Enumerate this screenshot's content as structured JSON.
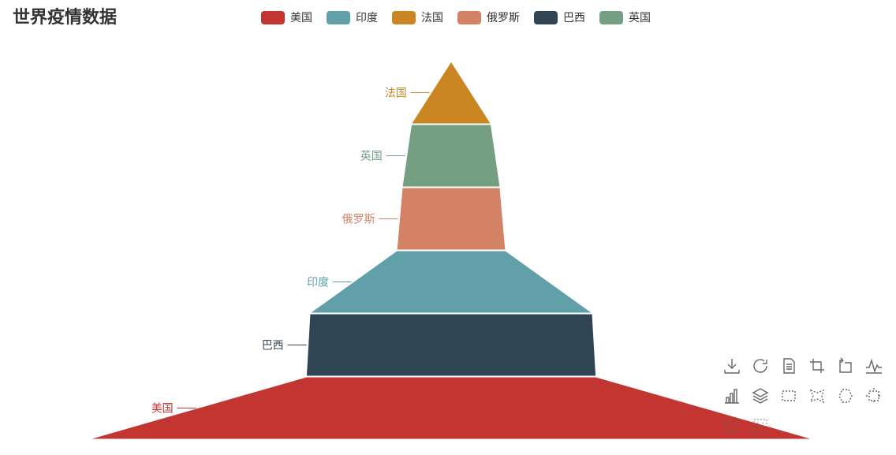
{
  "title": "世界疫情数据",
  "colors": {
    "美国": "#c23531",
    "印度": "#61a0a8",
    "法国": "#ca8622",
    "俄罗斯": "#d48265",
    "巴西": "#2f4554",
    "英国": "#749f83"
  },
  "chart_data": {
    "type": "funnel",
    "title": "世界疫情数据",
    "legend": {
      "placement": "top-center",
      "entries": [
        "美国",
        "印度",
        "法国",
        "俄罗斯",
        "巴西",
        "英国"
      ]
    },
    "sort": "descending-width",
    "series": [
      {
        "data": [
          {
            "name": "美国",
            "value": 100
          },
          {
            "name": "巴西",
            "value": 40
          },
          {
            "name": "印度",
            "value": 39
          },
          {
            "name": "俄罗斯",
            "value": 15
          },
          {
            "name": "英国",
            "value": 13.5
          },
          {
            "name": "法国",
            "value": 11
          }
        ]
      }
    ]
  },
  "toolbox": {
    "icons": [
      "download-icon",
      "refresh-icon",
      "data-view-icon",
      "zoom-icon",
      "zoom-back-icon",
      "line-chart-icon",
      "bar-chart-icon",
      "stack-icon",
      "rect-select-icon",
      "lasso-select-icon",
      "keep-select-icon",
      "clear-select-icon",
      "brush-hidden-icon-a",
      "brush-hidden-icon-b"
    ]
  }
}
